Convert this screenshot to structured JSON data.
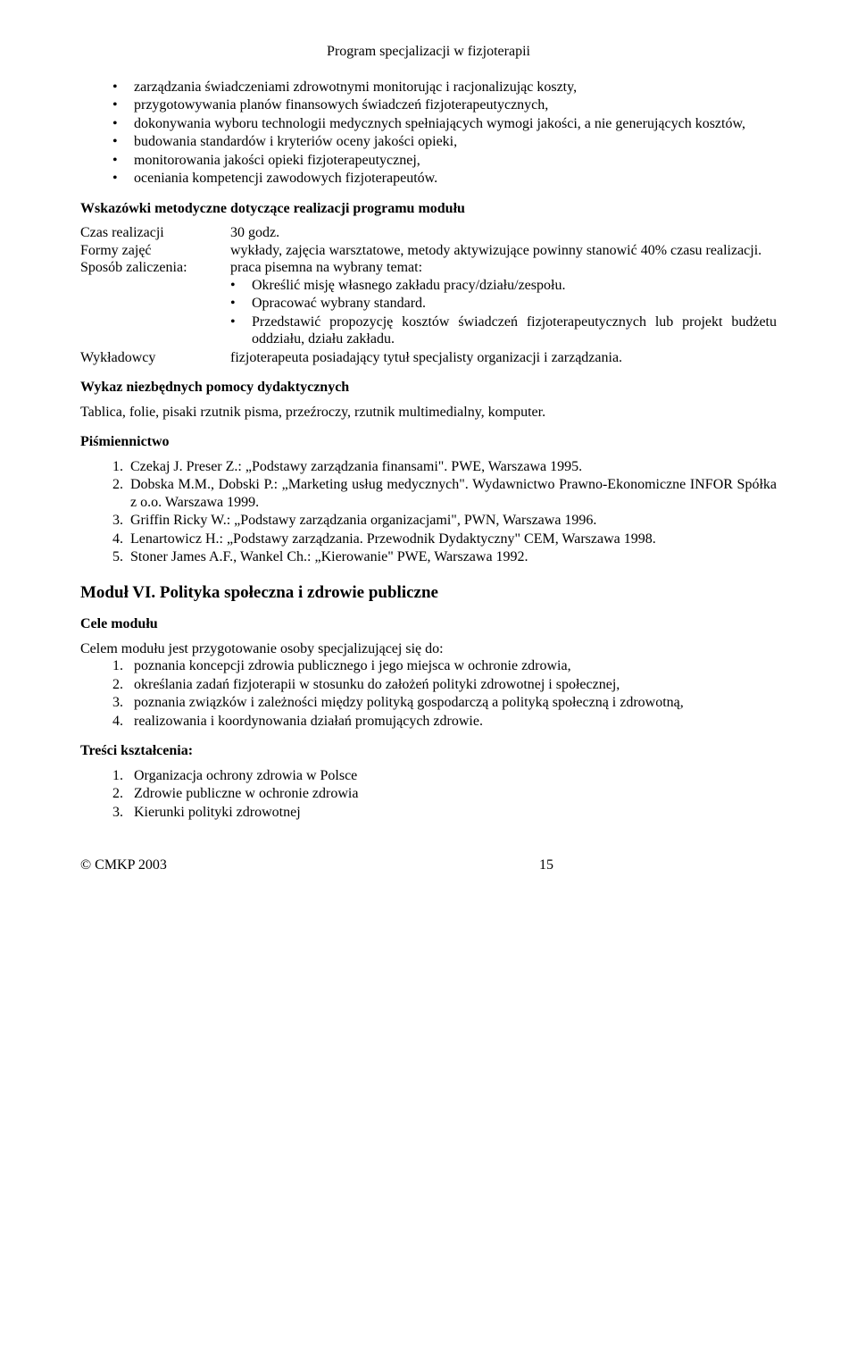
{
  "header": {
    "title": "Program specjalizacji w fizjoterapii"
  },
  "topBullets": [
    "zarządzania świadczeniami zdrowotnymi monitorując i racjonalizując koszty,",
    "przygotowywania planów finansowych świadczeń fizjoterapeutycznych,",
    "dokonywania wyboru technologii medycznych spełniających wymogi jakości, a nie generujących kosztów,",
    "budowania standardów i kryteriów oceny jakości opieki,",
    "monitorowania jakości opieki fizjoterapeutycznej,",
    "oceniania kompetencji zawodowych fizjoterapeutów."
  ],
  "wskazowkiHeading": "Wskazówki metodyczne dotyczące realizacji programu modułu",
  "kv": {
    "czasLabel": "Czas realizacji",
    "czasValue": "30 godz.",
    "formyLabel": "Formy zajęć",
    "formyValue": "wykłady, zajęcia warsztatowe, metody aktywizujące powinny stanowić 40% czasu realizacji.",
    "sposobLabel": "Sposób zaliczenia:",
    "sposobIntro": "praca pisemna na wybrany temat:",
    "sposobItems": [
      "Określić misję własnego zakładu pracy/działu/zespołu.",
      "Opracować wybrany standard.",
      "Przedstawić propozycję kosztów świadczeń fizjoterapeutycznych lub projekt budżetu oddziału, działu zakładu."
    ],
    "wyklLabel": "Wykładowcy",
    "wyklValue": "fizjoterapeuta posiadający tytuł specjalisty organizacji i zarządzania."
  },
  "wykazHeading": "Wykaz niezbędnych pomocy dydaktycznych",
  "wykazText": "Tablica, folie, pisaki rzutnik pisma, przeźroczy, rzutnik multimedialny, komputer.",
  "pismHeading": "Piśmiennictwo",
  "pismItems": [
    "Czekaj J. Preser Z.: „Podstawy zarządzania finansami\". PWE, Warszawa 1995.",
    "Dobska M.M., Dobski P.: „Marketing usług medycznych\". Wydawnictwo Prawno-Ekonomiczne INFOR Spółka z o.o. Warszawa 1999.",
    "Griffin Ricky W.: „Podstawy zarządzania organizacjami\", PWN, Warszawa 1996.",
    "Lenartowicz H.: „Podstawy zarządzania. Przewodnik Dydaktyczny\" CEM, Warszawa 1998.",
    "Stoner James A.F., Wankel Ch.: „Kierowanie\" PWE, Warszawa 1992."
  ],
  "modulHeading": "Moduł VI. Polityka społeczna i zdrowie publiczne",
  "celeHeading": "Cele modułu",
  "celeIntro": "Celem modułu jest przygotowanie osoby specjalizującej się do:",
  "celeItems": [
    "poznania koncepcji zdrowia publicznego i jego miejsca w ochronie zdrowia,",
    "określania zadań fizjoterapii w stosunku do założeń polityki zdrowotnej i społecznej,",
    "poznania związków i zależności między polityką gospodarczą a polityką społeczną i zdrowotną,",
    "realizowania i koordynowania działań promujących zdrowie."
  ],
  "tresciHeading": "Treści kształcenia:",
  "tresciItems": [
    "Organizacja ochrony zdrowia w Polsce",
    "Zdrowie publiczne w ochronie zdrowia",
    "Kierunki polityki zdrowotnej"
  ],
  "footer": {
    "left": "© CMKP 2003",
    "page": "15"
  }
}
